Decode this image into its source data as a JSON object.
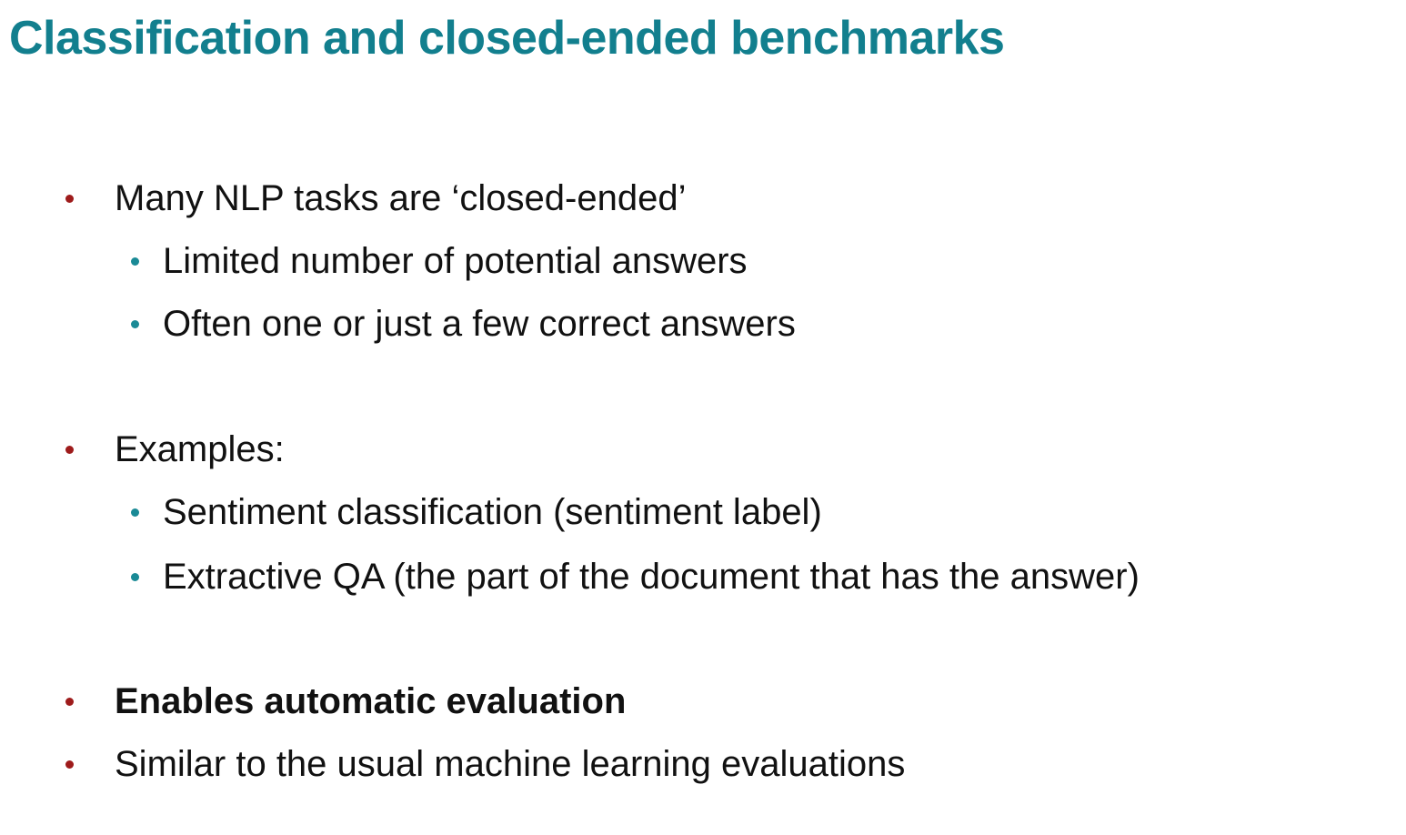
{
  "title": "Classification and closed-ended benchmarks",
  "colors": {
    "title": "#127F8E",
    "bullet_level1": "#9E1B1B",
    "bullet_level2": "#1A8A96",
    "text": "#111111"
  },
  "bullets": [
    {
      "text": "Many NLP tasks are ‘closed-ended’",
      "bold": false,
      "sub": [
        "Limited number of potential answers",
        "Often one or just a few correct answers"
      ]
    },
    {
      "text": "Examples:",
      "bold": false,
      "sub": [
        "Sentiment classification (sentiment label)",
        "Extractive QA (the part of the document that has the answer)"
      ]
    },
    {
      "text": "Enables automatic evaluation",
      "bold": true,
      "sub": []
    },
    {
      "text": "Similar to the usual machine learning evaluations",
      "bold": false,
      "sub": []
    }
  ]
}
